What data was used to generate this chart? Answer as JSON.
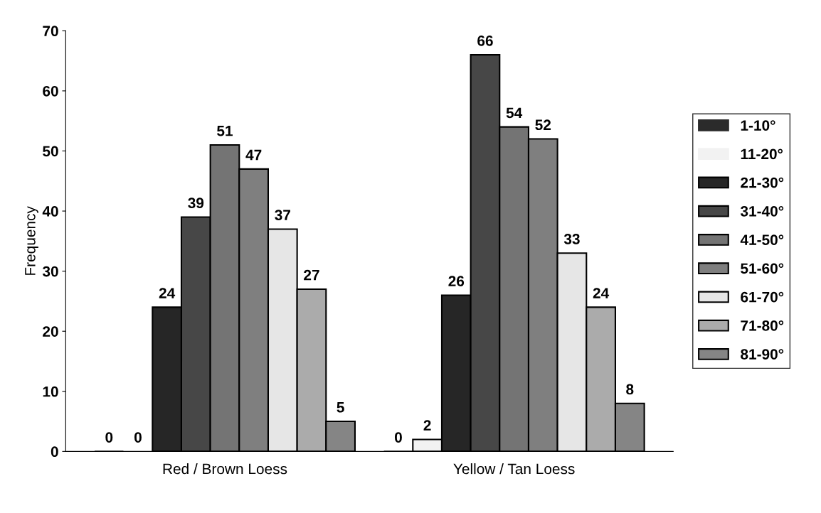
{
  "chart_data": {
    "type": "bar",
    "categories": [
      "Red / Brown Loess",
      "Yellow / Tan Loess"
    ],
    "ylabel": "Frequency",
    "series": [
      {
        "name": "1-10°",
        "color": "#2b2b2b",
        "values": [
          0,
          0
        ]
      },
      {
        "name": "11-20°",
        "color": "#f2f2f2",
        "values": [
          0,
          2
        ]
      },
      {
        "name": "21-30°",
        "color": "#262626",
        "values": [
          24,
          26
        ]
      },
      {
        "name": "31-40°",
        "color": "#474747",
        "values": [
          39,
          66
        ]
      },
      {
        "name": "41-50°",
        "color": "#747474",
        "values": [
          51,
          54
        ]
      },
      {
        "name": "51-60°",
        "color": "#7f7f7f",
        "values": [
          47,
          52
        ]
      },
      {
        "name": "61-70°",
        "color": "#e6e6e6",
        "values": [
          37,
          33
        ]
      },
      {
        "name": "71-80°",
        "color": "#ababab",
        "values": [
          27,
          24
        ]
      },
      {
        "name": "81-90°",
        "color": "#858585",
        "values": [
          5,
          8
        ]
      }
    ],
    "ylim": [
      0,
      70
    ],
    "yticks": [
      0,
      10,
      20,
      30,
      40,
      50,
      60,
      70
    ],
    "data_labels": true,
    "grid": false,
    "legend": "right"
  }
}
